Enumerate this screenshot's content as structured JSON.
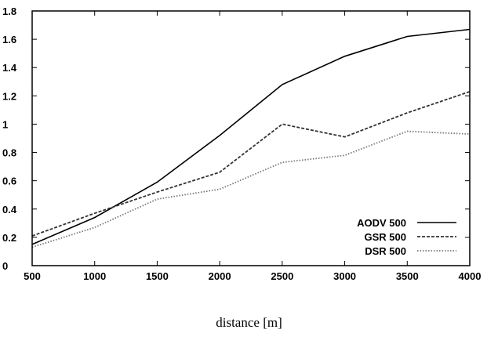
{
  "chart_data": {
    "type": "line",
    "title": "",
    "xlabel": "distance [m]",
    "ylabel": "",
    "xlim": [
      500,
      4000
    ],
    "ylim": [
      0,
      1.8
    ],
    "x_ticks": [
      500,
      1000,
      1500,
      2000,
      2500,
      3000,
      3500,
      4000
    ],
    "y_ticks": [
      0,
      0.2,
      0.4,
      0.6,
      0.8,
      1,
      1.2,
      1.4,
      1.6,
      1.8
    ],
    "grid": false,
    "legend_position": "bottom-right",
    "series": [
      {
        "name": "AODV 500",
        "style": "solid",
        "color": "#000000",
        "x": [
          500,
          1000,
          1500,
          2000,
          2500,
          3000,
          3500,
          4000
        ],
        "y": [
          0.15,
          0.34,
          0.59,
          0.92,
          1.28,
          1.48,
          1.62,
          1.67
        ]
      },
      {
        "name": "GSR 500",
        "style": "dashed",
        "color": "#333333",
        "x": [
          500,
          1000,
          1500,
          2000,
          2500,
          3000,
          3500,
          4000
        ],
        "y": [
          0.21,
          0.37,
          0.52,
          0.66,
          1.0,
          0.91,
          1.08,
          1.23
        ]
      },
      {
        "name": "DSR 500",
        "style": "dotted",
        "color": "#777777",
        "x": [
          500,
          1000,
          1500,
          2000,
          2500,
          3000,
          3500,
          4000
        ],
        "y": [
          0.13,
          0.27,
          0.47,
          0.54,
          0.73,
          0.78,
          0.95,
          0.93
        ]
      }
    ]
  }
}
